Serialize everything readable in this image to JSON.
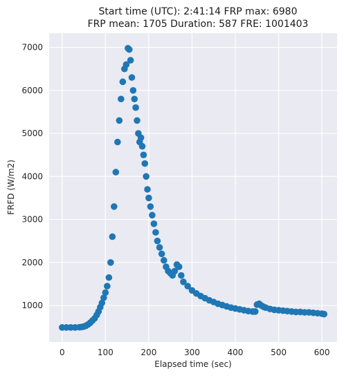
{
  "chart_data": {
    "type": "scatter",
    "title_line1": "Start time (UTC): 2:41:14 FRP max: 6980",
    "title_line2": "FRP mean: 1705 Duration: 587 FRE: 1001403",
    "xlabel": "Elapsed time (sec)",
    "ylabel": "FRFD (W/m2)",
    "xlim": [
      -30,
      635
    ],
    "ylim": [
      150,
      7330
    ],
    "xticks": [
      0,
      100,
      200,
      300,
      400,
      500,
      600
    ],
    "yticks": [
      1000,
      2000,
      3000,
      4000,
      5000,
      6000,
      7000
    ],
    "grid": true,
    "color": "#1f77b4",
    "background": "#eaeaf2",
    "series": [
      {
        "x": [
          0,
          10,
          20,
          30,
          40,
          45,
          50,
          55,
          60,
          65,
          70,
          75,
          80,
          84,
          88,
          92,
          96,
          100,
          104,
          108,
          112,
          116,
          120,
          124,
          128,
          132,
          136,
          140,
          144,
          148,
          152,
          155,
          158,
          161,
          164,
          167,
          170,
          173,
          176,
          179,
          182,
          185,
          188,
          191,
          194,
          197,
          200,
          204,
          208,
          212,
          216,
          220,
          225,
          230,
          235,
          240,
          245,
          250,
          255,
          260,
          265,
          270,
          275,
          280,
          290,
          300,
          310,
          320,
          330,
          340,
          350,
          360,
          370,
          380,
          390,
          400,
          410,
          420,
          430,
          440,
          446,
          450,
          455,
          460,
          465,
          470,
          480,
          490,
          500,
          510,
          520,
          530,
          540,
          550,
          560,
          570,
          580,
          590,
          600,
          605
        ],
        "y": [
          490,
          490,
          490,
          490,
          495,
          500,
          510,
          530,
          560,
          600,
          650,
          700,
          780,
          860,
          960,
          1060,
          1180,
          1300,
          1450,
          1650,
          2000,
          2600,
          3300,
          4100,
          4800,
          5300,
          5800,
          6200,
          6500,
          6600,
          6980,
          6950,
          6700,
          6300,
          6000,
          5800,
          5600,
          5300,
          5000,
          4800,
          4900,
          4700,
          4500,
          4300,
          4000,
          3700,
          3500,
          3300,
          3100,
          2900,
          2700,
          2500,
          2350,
          2200,
          2050,
          1900,
          1800,
          1750,
          1700,
          1800,
          1950,
          1900,
          1700,
          1550,
          1450,
          1350,
          1280,
          1220,
          1170,
          1120,
          1080,
          1040,
          1010,
          980,
          950,
          930,
          910,
          890,
          870,
          860,
          860,
          1020,
          1040,
          1000,
          970,
          950,
          920,
          900,
          890,
          880,
          870,
          860,
          850,
          850,
          840,
          840,
          830,
          820,
          810,
          800
        ]
      }
    ]
  }
}
